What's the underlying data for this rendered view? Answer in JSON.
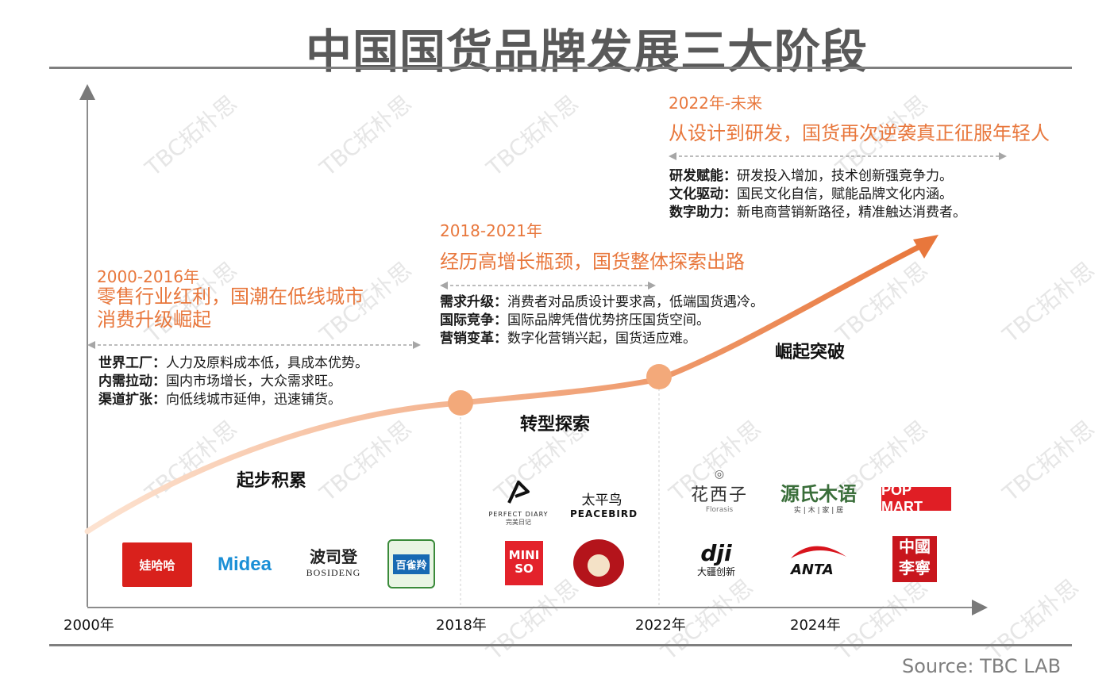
{
  "title": "中国国货品牌发展三大阶段",
  "watermark": "TBC拓朴思",
  "source": "Source: TBC LAB",
  "axis_years": [
    "2000年",
    "2018年",
    "2022年",
    "2024年"
  ],
  "colors": {
    "accent": "#e8773c",
    "curve_start": "#fde3d1",
    "curve_end": "#e8773c",
    "node": "#f3a97a"
  },
  "stages": [
    {
      "name": "起步积累",
      "period": "2000-2016年",
      "headline_lines": [
        "零售行业红利，国潮在低线城市",
        "消费升级崛起"
      ],
      "items": [
        {
          "label": "世界工厂：",
          "text": "人力及原料成本低，具成本优势。"
        },
        {
          "label": "内需拉动：",
          "text": "国内市场增长，大众需求旺。"
        },
        {
          "label": "渠道扩张：",
          "text": "向低线城市延伸，迅速铺货。"
        }
      ]
    },
    {
      "name": "转型探索",
      "period": "2018-2021年",
      "headline_lines": [
        "经历高增长瓶颈，国货整体探索出路"
      ],
      "items": [
        {
          "label": "需求升级：",
          "text": "消费者对品质设计要求高，低端国货遇冷。"
        },
        {
          "label": "国际竞争：",
          "text": "国际品牌凭借优势挤压国货空间。"
        },
        {
          "label": "营销变革：",
          "text": "数字化营销兴起，国货适应难。"
        }
      ]
    },
    {
      "name": "崛起突破",
      "period": "2022年-未来",
      "headline_lines": [
        "从设计到研发，国货再次逆袭真正征服年轻人"
      ],
      "items": [
        {
          "label": "研发赋能：",
          "text": "研发投入增加，技术创新强竞争力。"
        },
        {
          "label": "文化驱动：",
          "text": "国民文化自信，赋能品牌文化内涵。"
        },
        {
          "label": "数字助力：",
          "text": "新电商营销新路径，精准触达消费者。"
        }
      ]
    }
  ],
  "logos": {
    "wahaha": "娃哈哈",
    "midea": "Midea",
    "bosideng_cn": "波司登",
    "bosideng_en": "BOSIDENG",
    "pechoin": "百雀羚",
    "perfect_diary_en": "PERFECT DIARY",
    "perfect_diary_cn": "完美日记",
    "peacebird_cn": "太平鸟",
    "peacebird_en": "PEACEBIRD",
    "miniso_top": "MINI",
    "miniso_bottom": "SO",
    "florasis_cn": "花西子",
    "florasis_en": "Florasis",
    "yuanshi_cn": "源氏木语",
    "yuanshi_sub": "实 | 木 | 家 | 居",
    "popmart": "POP MART",
    "dji": "dji",
    "dji_cn": "大疆创新",
    "anta": "ANTA",
    "lining_top": "中國",
    "lining_bottom": "李寧"
  }
}
